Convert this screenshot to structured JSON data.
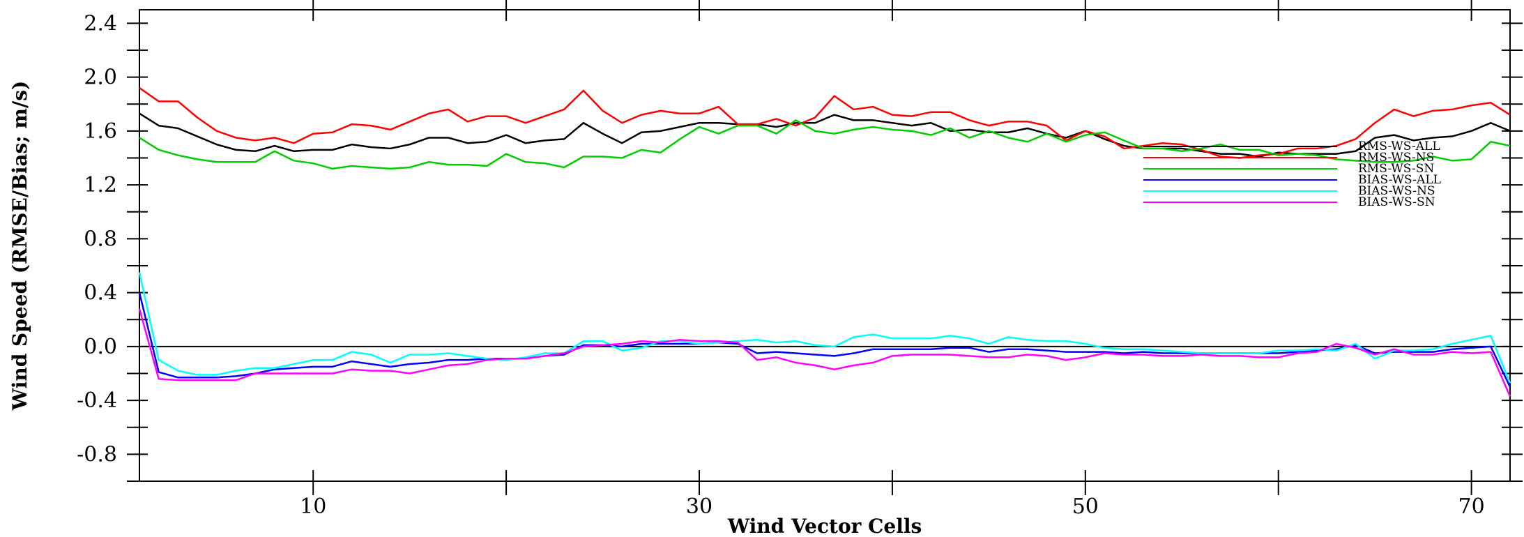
{
  "chart_data": {
    "type": "line",
    "title": "",
    "xlabel": "Wind Vector Cells",
    "ylabel": "Wind Speed (RMSE/Bias; m/s)",
    "xlim": [
      1,
      72
    ],
    "ylim": [
      -1.0,
      2.5
    ],
    "x_ticks": [
      10,
      30,
      50,
      70
    ],
    "x_tick_labels": [
      "10",
      "30",
      "50",
      "70"
    ],
    "y_ticks": [
      -0.8,
      -0.4,
      0.0,
      0.4,
      0.8,
      1.2,
      1.6,
      2.0,
      2.4
    ],
    "y_tick_labels": [
      "-0.8",
      "-0.4",
      "0.0",
      "0.4",
      "0.8",
      "1.2",
      "1.6",
      "2.0",
      "2.4"
    ],
    "grid": false,
    "zero_line": true,
    "legend_position": "right",
    "x_start": 1,
    "series": [
      {
        "name": "RMS-WS-ALL",
        "color": "#000000",
        "values": [
          1.73,
          1.64,
          1.62,
          1.56,
          1.5,
          1.46,
          1.45,
          1.49,
          1.45,
          1.46,
          1.46,
          1.5,
          1.48,
          1.47,
          1.5,
          1.55,
          1.55,
          1.51,
          1.52,
          1.57,
          1.51,
          1.53,
          1.54,
          1.66,
          1.58,
          1.51,
          1.59,
          1.6,
          1.63,
          1.66,
          1.66,
          1.65,
          1.65,
          1.63,
          1.66,
          1.66,
          1.72,
          1.68,
          1.68,
          1.66,
          1.64,
          1.66,
          1.6,
          1.61,
          1.59,
          1.59,
          1.62,
          1.58,
          1.55,
          1.6,
          1.54,
          1.49,
          1.47,
          1.47,
          1.47,
          1.45,
          1.43,
          1.43,
          1.41,
          1.44,
          1.43,
          1.43,
          1.43,
          1.45,
          1.55,
          1.57,
          1.53,
          1.55,
          1.56,
          1.6,
          1.66,
          1.6
        ]
      },
      {
        "name": "RMS-WS-NS",
        "color": "#ff0000",
        "values": [
          1.92,
          1.82,
          1.82,
          1.7,
          1.6,
          1.55,
          1.53,
          1.55,
          1.51,
          1.58,
          1.59,
          1.65,
          1.64,
          1.61,
          1.67,
          1.73,
          1.76,
          1.67,
          1.71,
          1.71,
          1.66,
          1.71,
          1.76,
          1.9,
          1.75,
          1.66,
          1.72,
          1.75,
          1.73,
          1.73,
          1.78,
          1.65,
          1.65,
          1.69,
          1.64,
          1.7,
          1.86,
          1.76,
          1.78,
          1.72,
          1.71,
          1.74,
          1.74,
          1.68,
          1.64,
          1.67,
          1.67,
          1.64,
          1.53,
          1.6,
          1.56,
          1.47,
          1.49,
          1.51,
          1.5,
          1.46,
          1.41,
          1.4,
          1.42,
          1.43,
          1.47,
          1.47,
          1.49,
          1.54,
          1.66,
          1.76,
          1.71,
          1.75,
          1.76,
          1.79,
          1.81,
          1.72
        ]
      },
      {
        "name": "RMS-WS-SN",
        "color": "#00cc00",
        "values": [
          1.55,
          1.46,
          1.42,
          1.39,
          1.37,
          1.37,
          1.37,
          1.45,
          1.38,
          1.36,
          1.32,
          1.34,
          1.33,
          1.32,
          1.33,
          1.37,
          1.35,
          1.35,
          1.34,
          1.43,
          1.37,
          1.36,
          1.33,
          1.41,
          1.41,
          1.4,
          1.46,
          1.44,
          1.54,
          1.63,
          1.58,
          1.64,
          1.64,
          1.58,
          1.68,
          1.6,
          1.58,
          1.61,
          1.63,
          1.61,
          1.6,
          1.57,
          1.62,
          1.55,
          1.6,
          1.55,
          1.52,
          1.58,
          1.52,
          1.57,
          1.59,
          1.53,
          1.47,
          1.47,
          1.45,
          1.47,
          1.5,
          1.46,
          1.46,
          1.42,
          1.43,
          1.42,
          1.39,
          1.38,
          1.37,
          1.37,
          1.38,
          1.41,
          1.38,
          1.39,
          1.52,
          1.49
        ]
      },
      {
        "name": "BIAS-WS-ALL",
        "color": "#0000ff",
        "values": [
          0.4,
          -0.19,
          -0.23,
          -0.23,
          -0.23,
          -0.22,
          -0.2,
          -0.17,
          -0.16,
          -0.15,
          -0.15,
          -0.11,
          -0.13,
          -0.15,
          -0.13,
          -0.12,
          -0.1,
          -0.1,
          -0.09,
          -0.09,
          -0.09,
          -0.07,
          -0.06,
          0.01,
          0.01,
          0.0,
          0.02,
          0.02,
          0.02,
          0.02,
          0.03,
          0.02,
          -0.05,
          -0.04,
          -0.05,
          -0.06,
          -0.07,
          -0.05,
          -0.02,
          -0.02,
          -0.02,
          -0.02,
          -0.01,
          -0.01,
          -0.04,
          -0.02,
          -0.02,
          -0.03,
          -0.04,
          -0.04,
          -0.04,
          -0.05,
          -0.04,
          -0.05,
          -0.05,
          -0.05,
          -0.05,
          -0.05,
          -0.05,
          -0.05,
          -0.04,
          -0.03,
          -0.02,
          0.01,
          -0.05,
          -0.04,
          -0.04,
          -0.04,
          -0.02,
          -0.01,
          0.0,
          -0.3
        ]
      },
      {
        "name": "BIAS-WS-NS",
        "color": "#00ffff",
        "values": [
          0.55,
          -0.1,
          -0.18,
          -0.21,
          -0.21,
          -0.18,
          -0.16,
          -0.16,
          -0.13,
          -0.1,
          -0.1,
          -0.04,
          -0.06,
          -0.12,
          -0.06,
          -0.06,
          -0.05,
          -0.07,
          -0.09,
          -0.1,
          -0.08,
          -0.05,
          -0.05,
          0.04,
          0.04,
          -0.03,
          -0.01,
          0.04,
          0.04,
          0.02,
          0.03,
          0.04,
          0.05,
          0.03,
          0.04,
          0.01,
          0.0,
          0.07,
          0.09,
          0.06,
          0.06,
          0.06,
          0.08,
          0.06,
          0.02,
          0.07,
          0.05,
          0.04,
          0.04,
          0.02,
          -0.01,
          -0.02,
          -0.02,
          -0.03,
          -0.04,
          -0.05,
          -0.05,
          -0.05,
          -0.05,
          -0.03,
          -0.03,
          -0.02,
          -0.03,
          0.02,
          -0.09,
          -0.03,
          -0.03,
          -0.02,
          0.02,
          0.05,
          0.08,
          -0.27
        ]
      },
      {
        "name": "BIAS-WS-SN",
        "color": "#ff00ff",
        "values": [
          0.28,
          -0.24,
          -0.25,
          -0.25,
          -0.25,
          -0.25,
          -0.2,
          -0.2,
          -0.2,
          -0.2,
          -0.2,
          -0.17,
          -0.18,
          -0.18,
          -0.2,
          -0.17,
          -0.14,
          -0.13,
          -0.1,
          -0.09,
          -0.09,
          -0.07,
          -0.05,
          0.0,
          0.01,
          0.02,
          0.04,
          0.03,
          0.05,
          0.04,
          0.04,
          0.03,
          -0.1,
          -0.08,
          -0.12,
          -0.14,
          -0.17,
          -0.14,
          -0.12,
          -0.07,
          -0.06,
          -0.06,
          -0.06,
          -0.07,
          -0.08,
          -0.08,
          -0.06,
          -0.07,
          -0.1,
          -0.08,
          -0.05,
          -0.06,
          -0.06,
          -0.07,
          -0.07,
          -0.06,
          -0.07,
          -0.07,
          -0.08,
          -0.08,
          -0.05,
          -0.04,
          0.02,
          -0.01,
          -0.06,
          -0.02,
          -0.06,
          -0.06,
          -0.04,
          -0.05,
          -0.04,
          -0.37
        ]
      }
    ]
  }
}
